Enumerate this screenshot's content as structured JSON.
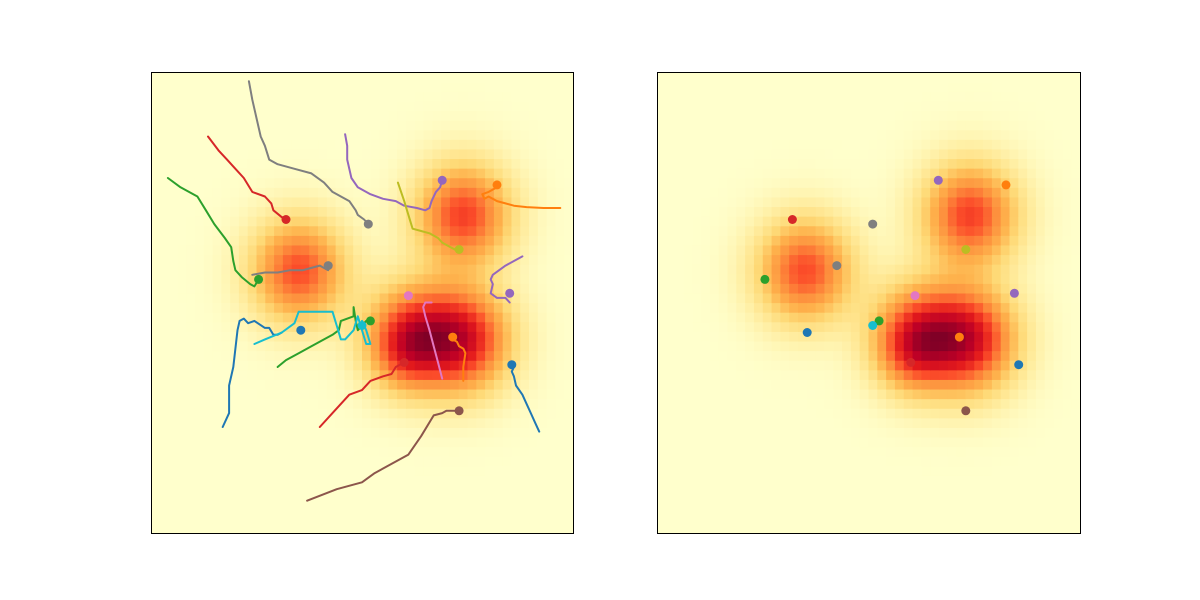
{
  "chart_data": [
    {
      "type": "heatmap",
      "title": "",
      "xlabel": "",
      "ylabel": "",
      "xlim": [
        0,
        1
      ],
      "ylim": [
        0,
        1
      ],
      "axes_ticks": false,
      "grid": false,
      "colormap": "YlOrRd",
      "colormap_stops": [
        "#ffffcc",
        "#ffeda0",
        "#fed976",
        "#feb24c",
        "#fd8d3c",
        "#fc4e2a",
        "#e31a1c",
        "#bd0026",
        "#800026"
      ],
      "density_components": [
        {
          "x": 0.74,
          "y": 0.69,
          "sigma": 0.075,
          "weight": 0.86
        },
        {
          "x": 0.35,
          "y": 0.57,
          "sigma": 0.075,
          "weight": 0.82
        },
        {
          "x": 0.74,
          "y": 0.42,
          "sigma": 0.075,
          "weight": 1.0
        },
        {
          "x": 0.62,
          "y": 0.43,
          "sigma": 0.075,
          "weight": 0.82
        },
        {
          "x": 0.6,
          "y": 0.39,
          "sigma": 0.055,
          "weight": 0.3
        }
      ],
      "trajectories": [
        {
          "color": "#1f77b4",
          "points": [
            [
              0.17,
              0.23
            ],
            [
              0.185,
              0.26
            ],
            [
              0.185,
              0.32
            ],
            [
              0.195,
              0.36
            ],
            [
              0.2,
              0.4
            ],
            [
              0.205,
              0.44
            ],
            [
              0.21,
              0.46
            ],
            [
              0.22,
              0.465
            ],
            [
              0.23,
              0.455
            ],
            [
              0.245,
              0.46
            ],
            [
              0.27,
              0.445
            ],
            [
              0.28,
              0.445
            ],
            [
              0.29,
              0.43
            ],
            [
              0.3,
              0.43
            ],
            [
              0.31,
              0.435
            ]
          ]
        },
        {
          "color": "#1f77b4",
          "points": [
            [
              0.92,
              0.22
            ],
            [
              0.91,
              0.24
            ],
            [
              0.9,
              0.26
            ],
            [
              0.89,
              0.28
            ],
            [
              0.88,
              0.3
            ],
            [
              0.865,
              0.32
            ],
            [
              0.86,
              0.34
            ],
            [
              0.855,
              0.35
            ],
            [
              0.86,
              0.36
            ]
          ]
        },
        {
          "color": "#ff7f0e",
          "points": [
            [
              0.97,
              0.705
            ],
            [
              0.93,
              0.705
            ],
            [
              0.89,
              0.707
            ],
            [
              0.86,
              0.71
            ],
            [
              0.84,
              0.715
            ],
            [
              0.82,
              0.72
            ],
            [
              0.8,
              0.73
            ],
            [
              0.79,
              0.725
            ],
            [
              0.785,
              0.735
            ],
            [
              0.8,
              0.74
            ],
            [
              0.82,
              0.75
            ]
          ]
        },
        {
          "color": "#ff7f0e",
          "points": [
            [
              0.74,
              0.33
            ],
            [
              0.74,
              0.36
            ],
            [
              0.745,
              0.39
            ],
            [
              0.74,
              0.4
            ],
            [
              0.73,
              0.405
            ],
            [
              0.725,
              0.415
            ],
            [
              0.715,
              0.42
            ],
            [
              0.72,
              0.425
            ]
          ]
        },
        {
          "color": "#2ca02c",
          "points": [
            [
              0.04,
              0.77
            ],
            [
              0.07,
              0.75
            ],
            [
              0.11,
              0.73
            ],
            [
              0.13,
              0.7
            ],
            [
              0.15,
              0.67
            ],
            [
              0.175,
              0.64
            ],
            [
              0.19,
              0.62
            ],
            [
              0.195,
              0.59
            ],
            [
              0.2,
              0.57
            ],
            [
              0.215,
              0.555
            ],
            [
              0.235,
              0.54
            ],
            [
              0.245,
              0.535
            ],
            [
              0.255,
              0.55
            ]
          ]
        },
        {
          "color": "#2ca02c",
          "points": [
            [
              0.3,
              0.36
            ],
            [
              0.32,
              0.375
            ],
            [
              0.35,
              0.39
            ],
            [
              0.38,
              0.405
            ],
            [
              0.41,
              0.42
            ],
            [
              0.43,
              0.43
            ],
            [
              0.445,
              0.44
            ],
            [
              0.45,
              0.46
            ],
            [
              0.48,
              0.47
            ],
            [
              0.48,
              0.49
            ],
            [
              0.485,
              0.46
            ],
            [
              0.49,
              0.44
            ],
            [
              0.5,
              0.45
            ],
            [
              0.51,
              0.46
            ],
            [
              0.52,
              0.46
            ]
          ]
        },
        {
          "color": "#d62728",
          "points": [
            [
              0.135,
              0.86
            ],
            [
              0.16,
              0.83
            ],
            [
              0.18,
              0.81
            ],
            [
              0.2,
              0.79
            ],
            [
              0.22,
              0.77
            ],
            [
              0.24,
              0.74
            ],
            [
              0.27,
              0.73
            ],
            [
              0.285,
              0.715
            ],
            [
              0.29,
              0.7
            ],
            [
              0.31,
              0.685
            ],
            [
              0.32,
              0.685
            ]
          ]
        },
        {
          "color": "#d62728",
          "points": [
            [
              0.4,
              0.23
            ],
            [
              0.43,
              0.26
            ],
            [
              0.47,
              0.3
            ],
            [
              0.5,
              0.31
            ],
            [
              0.52,
              0.33
            ],
            [
              0.55,
              0.34
            ],
            [
              0.57,
              0.345
            ],
            [
              0.58,
              0.36
            ],
            [
              0.6,
              0.37
            ],
            [
              0.6,
              0.37
            ]
          ]
        },
        {
          "color": "#9467bd",
          "points": [
            [
              0.46,
              0.865
            ],
            [
              0.465,
              0.84
            ],
            [
              0.465,
              0.81
            ],
            [
              0.475,
              0.77
            ],
            [
              0.49,
              0.75
            ],
            [
              0.52,
              0.735
            ],
            [
              0.55,
              0.725
            ],
            [
              0.58,
              0.72
            ],
            [
              0.6,
              0.71
            ],
            [
              0.63,
              0.705
            ],
            [
              0.65,
              0.7
            ],
            [
              0.66,
              0.705
            ],
            [
              0.665,
              0.72
            ],
            [
              0.675,
              0.74
            ],
            [
              0.685,
              0.75
            ],
            [
              0.69,
              0.765
            ]
          ]
        },
        {
          "color": "#9467bd",
          "points": [
            [
              0.88,
              0.6
            ],
            [
              0.84,
              0.58
            ],
            [
              0.81,
              0.56
            ],
            [
              0.805,
              0.55
            ],
            [
              0.81,
              0.54
            ],
            [
              0.805,
              0.52
            ],
            [
              0.82,
              0.51
            ],
            [
              0.84,
              0.51
            ],
            [
              0.85,
              0.5
            ]
          ]
        },
        {
          "color": "#8c564b",
          "points": [
            [
              0.37,
              0.07
            ],
            [
              0.44,
              0.095
            ],
            [
              0.5,
              0.11
            ],
            [
              0.53,
              0.13
            ],
            [
              0.57,
              0.15
            ],
            [
              0.61,
              0.17
            ],
            [
              0.64,
              0.21
            ],
            [
              0.67,
              0.255
            ],
            [
              0.69,
              0.26
            ],
            [
              0.7,
              0.265
            ],
            [
              0.72,
              0.265
            ],
            [
              0.73,
              0.26
            ]
          ]
        },
        {
          "color": "#7f7f7f",
          "points": [
            [
              0.232,
              0.98
            ],
            [
              0.24,
              0.94
            ],
            [
              0.25,
              0.9
            ],
            [
              0.26,
              0.86
            ],
            [
              0.27,
              0.84
            ],
            [
              0.28,
              0.81
            ],
            [
              0.3,
              0.8
            ],
            [
              0.34,
              0.79
            ],
            [
              0.38,
              0.78
            ],
            [
              0.41,
              0.76
            ],
            [
              0.43,
              0.74
            ],
            [
              0.45,
              0.73
            ],
            [
              0.47,
              0.72
            ],
            [
              0.485,
              0.7
            ],
            [
              0.49,
              0.69
            ],
            [
              0.505,
              0.68
            ],
            [
              0.515,
              0.67
            ]
          ]
        },
        {
          "color": "#7f7f7f",
          "points": [
            [
              0.24,
              0.56
            ],
            [
              0.27,
              0.565
            ],
            [
              0.3,
              0.565
            ],
            [
              0.33,
              0.57
            ],
            [
              0.36,
              0.57
            ],
            [
              0.38,
              0.575
            ],
            [
              0.4,
              0.58
            ],
            [
              0.42,
              0.57
            ]
          ]
        },
        {
          "color": "#bcbd22",
          "points": [
            [
              0.585,
              0.76
            ],
            [
              0.6,
              0.72
            ],
            [
              0.61,
              0.69
            ],
            [
              0.62,
              0.66
            ],
            [
              0.64,
              0.655
            ],
            [
              0.66,
              0.65
            ],
            [
              0.68,
              0.64
            ],
            [
              0.69,
              0.63
            ],
            [
              0.71,
              0.62
            ],
            [
              0.72,
              0.615
            ],
            [
              0.73,
              0.61
            ]
          ]
        },
        {
          "color": "#e377c2",
          "points": [
            [
              0.69,
              0.335
            ],
            [
              0.68,
              0.37
            ],
            [
              0.67,
              0.405
            ],
            [
              0.66,
              0.44
            ],
            [
              0.65,
              0.47
            ],
            [
              0.645,
              0.49
            ],
            [
              0.65,
              0.5
            ],
            [
              0.66,
              0.5
            ],
            [
              0.665,
              0.5
            ]
          ]
        },
        {
          "color": "#17becf",
          "points": [
            [
              0.245,
              0.41
            ],
            [
              0.27,
              0.42
            ],
            [
              0.31,
              0.435
            ],
            [
              0.34,
              0.455
            ],
            [
              0.35,
              0.48
            ],
            [
              0.4,
              0.48
            ],
            [
              0.43,
              0.48
            ],
            [
              0.44,
              0.45
            ],
            [
              0.45,
              0.42
            ],
            [
              0.46,
              0.42
            ],
            [
              0.48,
              0.44
            ],
            [
              0.49,
              0.47
            ],
            [
              0.5,
              0.44
            ],
            [
              0.51,
              0.41
            ],
            [
              0.52,
              0.41
            ],
            [
              0.51,
              0.44
            ],
            [
              0.5,
              0.46
            ]
          ]
        }
      ],
      "endpoints": [
        {
          "x": 0.355,
          "y": 0.44,
          "color": "#1f77b4"
        },
        {
          "x": 0.855,
          "y": 0.365,
          "color": "#1f77b4"
        },
        {
          "x": 0.82,
          "y": 0.755,
          "color": "#ff7f0e"
        },
        {
          "x": 0.715,
          "y": 0.425,
          "color": "#ff7f0e"
        },
        {
          "x": 0.255,
          "y": 0.55,
          "color": "#2ca02c"
        },
        {
          "x": 0.52,
          "y": 0.46,
          "color": "#2ca02c"
        },
        {
          "x": 0.32,
          "y": 0.68,
          "color": "#d62728"
        },
        {
          "x": 0.6,
          "y": 0.37,
          "color": "#d62728"
        },
        {
          "x": 0.69,
          "y": 0.765,
          "color": "#9467bd"
        },
        {
          "x": 0.85,
          "y": 0.52,
          "color": "#9467bd"
        },
        {
          "x": 0.73,
          "y": 0.265,
          "color": "#8c564b"
        },
        {
          "x": 0.515,
          "y": 0.67,
          "color": "#7f7f7f"
        },
        {
          "x": 0.42,
          "y": 0.58,
          "color": "#7f7f7f"
        },
        {
          "x": 0.73,
          "y": 0.615,
          "color": "#bcbd22"
        },
        {
          "x": 0.61,
          "y": 0.515,
          "color": "#e377c2"
        },
        {
          "x": 0.5,
          "y": 0.45,
          "color": "#17becf"
        }
      ]
    },
    {
      "type": "heatmap",
      "title": "",
      "xlabel": "",
      "ylabel": "",
      "xlim": [
        0,
        1
      ],
      "ylim": [
        0,
        1
      ],
      "axes_ticks": false,
      "grid": false,
      "colormap": "YlOrRd",
      "colormap_stops": [
        "#ffffcc",
        "#ffeda0",
        "#fed976",
        "#feb24c",
        "#fd8d3c",
        "#fc4e2a",
        "#e31a1c",
        "#bd0026",
        "#800026"
      ],
      "density_components": [
        {
          "x": 0.74,
          "y": 0.69,
          "sigma": 0.075,
          "weight": 0.86
        },
        {
          "x": 0.35,
          "y": 0.57,
          "sigma": 0.075,
          "weight": 0.82
        },
        {
          "x": 0.74,
          "y": 0.42,
          "sigma": 0.075,
          "weight": 1.0
        },
        {
          "x": 0.62,
          "y": 0.43,
          "sigma": 0.075,
          "weight": 0.82
        },
        {
          "x": 0.6,
          "y": 0.39,
          "sigma": 0.055,
          "weight": 0.3
        }
      ],
      "endpoints": [
        {
          "x": 0.355,
          "y": 0.435,
          "color": "#1f77b4"
        },
        {
          "x": 0.855,
          "y": 0.365,
          "color": "#1f77b4"
        },
        {
          "x": 0.825,
          "y": 0.755,
          "color": "#ff7f0e"
        },
        {
          "x": 0.715,
          "y": 0.425,
          "color": "#ff7f0e"
        },
        {
          "x": 0.255,
          "y": 0.55,
          "color": "#2ca02c"
        },
        {
          "x": 0.525,
          "y": 0.46,
          "color": "#2ca02c"
        },
        {
          "x": 0.32,
          "y": 0.68,
          "color": "#d62728"
        },
        {
          "x": 0.6,
          "y": 0.37,
          "color": "#d62728"
        },
        {
          "x": 0.665,
          "y": 0.765,
          "color": "#9467bd"
        },
        {
          "x": 0.845,
          "y": 0.52,
          "color": "#9467bd"
        },
        {
          "x": 0.73,
          "y": 0.265,
          "color": "#8c564b"
        },
        {
          "x": 0.51,
          "y": 0.67,
          "color": "#7f7f7f"
        },
        {
          "x": 0.425,
          "y": 0.58,
          "color": "#7f7f7f"
        },
        {
          "x": 0.73,
          "y": 0.615,
          "color": "#bcbd22"
        },
        {
          "x": 0.61,
          "y": 0.515,
          "color": "#e377c2"
        },
        {
          "x": 0.51,
          "y": 0.45,
          "color": "#17becf"
        }
      ]
    }
  ]
}
